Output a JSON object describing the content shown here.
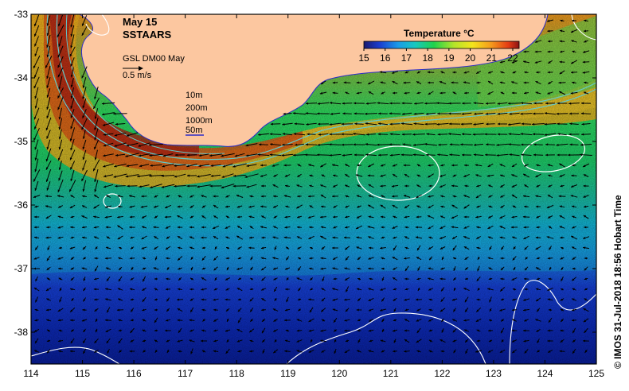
{
  "map": {
    "title_date": "May 15",
    "title_product": "SSTAARS",
    "velocity_source": "GSL DM00 May",
    "velocity_scale": "0.5 m/s",
    "depth_contours": [
      "10m",
      "200m",
      "1000m",
      "50m"
    ],
    "credit": "© IMOS 31-Jul-2018 18:56 Hobart Time",
    "lon_ticks": [
      "114",
      "115",
      "116",
      "117",
      "118",
      "119",
      "120",
      "121",
      "122",
      "123",
      "124",
      "125"
    ],
    "lat_ticks": [
      "-33",
      "-34",
      "-35",
      "-36",
      "-37",
      "-38"
    ],
    "lon_range": [
      114,
      125
    ],
    "lat_range": [
      -38.5,
      -33
    ],
    "colorbar": {
      "title": "Temperature °C",
      "ticks": [
        "15",
        "16",
        "17",
        "18",
        "19",
        "20",
        "21",
        "22"
      ],
      "range": [
        15,
        22.3
      ]
    },
    "colors": {
      "land": "#fcc7a0",
      "coast": "#2c2cc8",
      "contour": "#ffffff",
      "isobath": "#62c8c8"
    }
  }
}
